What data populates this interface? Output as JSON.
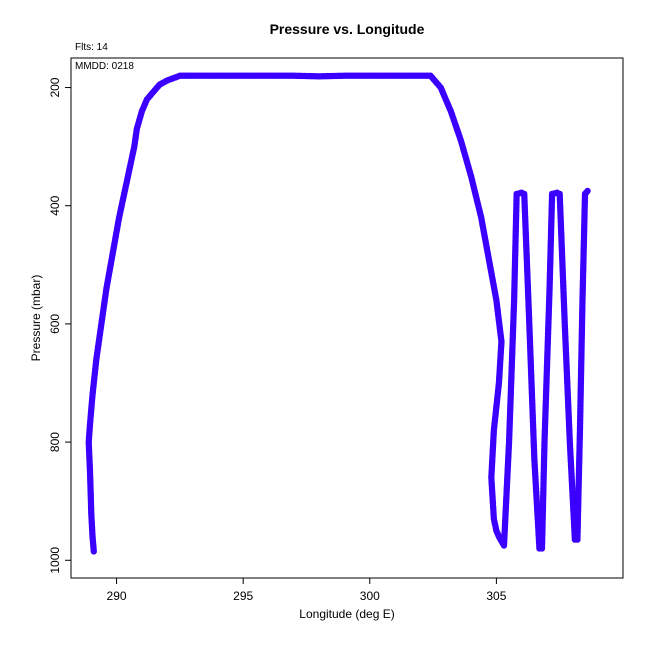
{
  "chart_data": {
    "type": "scatter",
    "title": "Pressure vs. Longitude",
    "xlabel": "Longitude (deg E)",
    "ylabel": "Pressure (mbar)",
    "annotations": {
      "flts": "Flts: 14",
      "mmdd": "MMDD: 0218"
    },
    "xlim": [
      288.2,
      310.0
    ],
    "ylim": [
      1030,
      150
    ],
    "y_reversed": true,
    "x_ticks": [
      290,
      295,
      300,
      305
    ],
    "y_ticks": [
      200,
      400,
      600,
      800,
      1000
    ],
    "grid": false,
    "marker_color": "#3b00ff",
    "path": [
      [
        289.1,
        985
      ],
      [
        289.05,
        960
      ],
      [
        289.0,
        920
      ],
      [
        288.98,
        890
      ],
      [
        288.95,
        850
      ],
      [
        288.92,
        820
      ],
      [
        288.9,
        800
      ],
      [
        288.95,
        770
      ],
      [
        289.05,
        720
      ],
      [
        289.2,
        660
      ],
      [
        289.4,
        600
      ],
      [
        289.6,
        540
      ],
      [
        289.85,
        480
      ],
      [
        290.1,
        420
      ],
      [
        290.4,
        360
      ],
      [
        290.7,
        300
      ],
      [
        290.8,
        270
      ],
      [
        291.0,
        240
      ],
      [
        291.2,
        220
      ],
      [
        291.5,
        205
      ],
      [
        291.7,
        195
      ],
      [
        292.0,
        188
      ],
      [
        292.5,
        180
      ],
      [
        293.0,
        180
      ],
      [
        295.0,
        180
      ],
      [
        297.0,
        180
      ],
      [
        298.0,
        181
      ],
      [
        299.0,
        180
      ],
      [
        301.0,
        180
      ],
      [
        302.4,
        180
      ],
      [
        302.8,
        200
      ],
      [
        303.2,
        240
      ],
      [
        303.6,
        290
      ],
      [
        304.0,
        350
      ],
      [
        304.4,
        420
      ],
      [
        304.7,
        490
      ],
      [
        305.0,
        560
      ],
      [
        305.2,
        630
      ],
      [
        305.1,
        700
      ],
      [
        304.9,
        780
      ],
      [
        304.8,
        860
      ],
      [
        304.9,
        930
      ],
      [
        305.0,
        950
      ],
      [
        305.1,
        960
      ],
      [
        305.3,
        975
      ],
      [
        305.5,
        800
      ],
      [
        305.7,
        560
      ],
      [
        305.8,
        380
      ],
      [
        306.0,
        378
      ],
      [
        306.1,
        380
      ],
      [
        306.3,
        600
      ],
      [
        306.5,
        830
      ],
      [
        306.7,
        980
      ],
      [
        306.8,
        980
      ],
      [
        306.9,
        800
      ],
      [
        307.1,
        540
      ],
      [
        307.2,
        380
      ],
      [
        307.4,
        378
      ],
      [
        307.5,
        380
      ],
      [
        307.7,
        600
      ],
      [
        307.9,
        800
      ],
      [
        308.1,
        965
      ],
      [
        308.2,
        965
      ],
      [
        308.3,
        780
      ],
      [
        308.4,
        560
      ],
      [
        308.5,
        380
      ],
      [
        308.6,
        375
      ]
    ]
  }
}
